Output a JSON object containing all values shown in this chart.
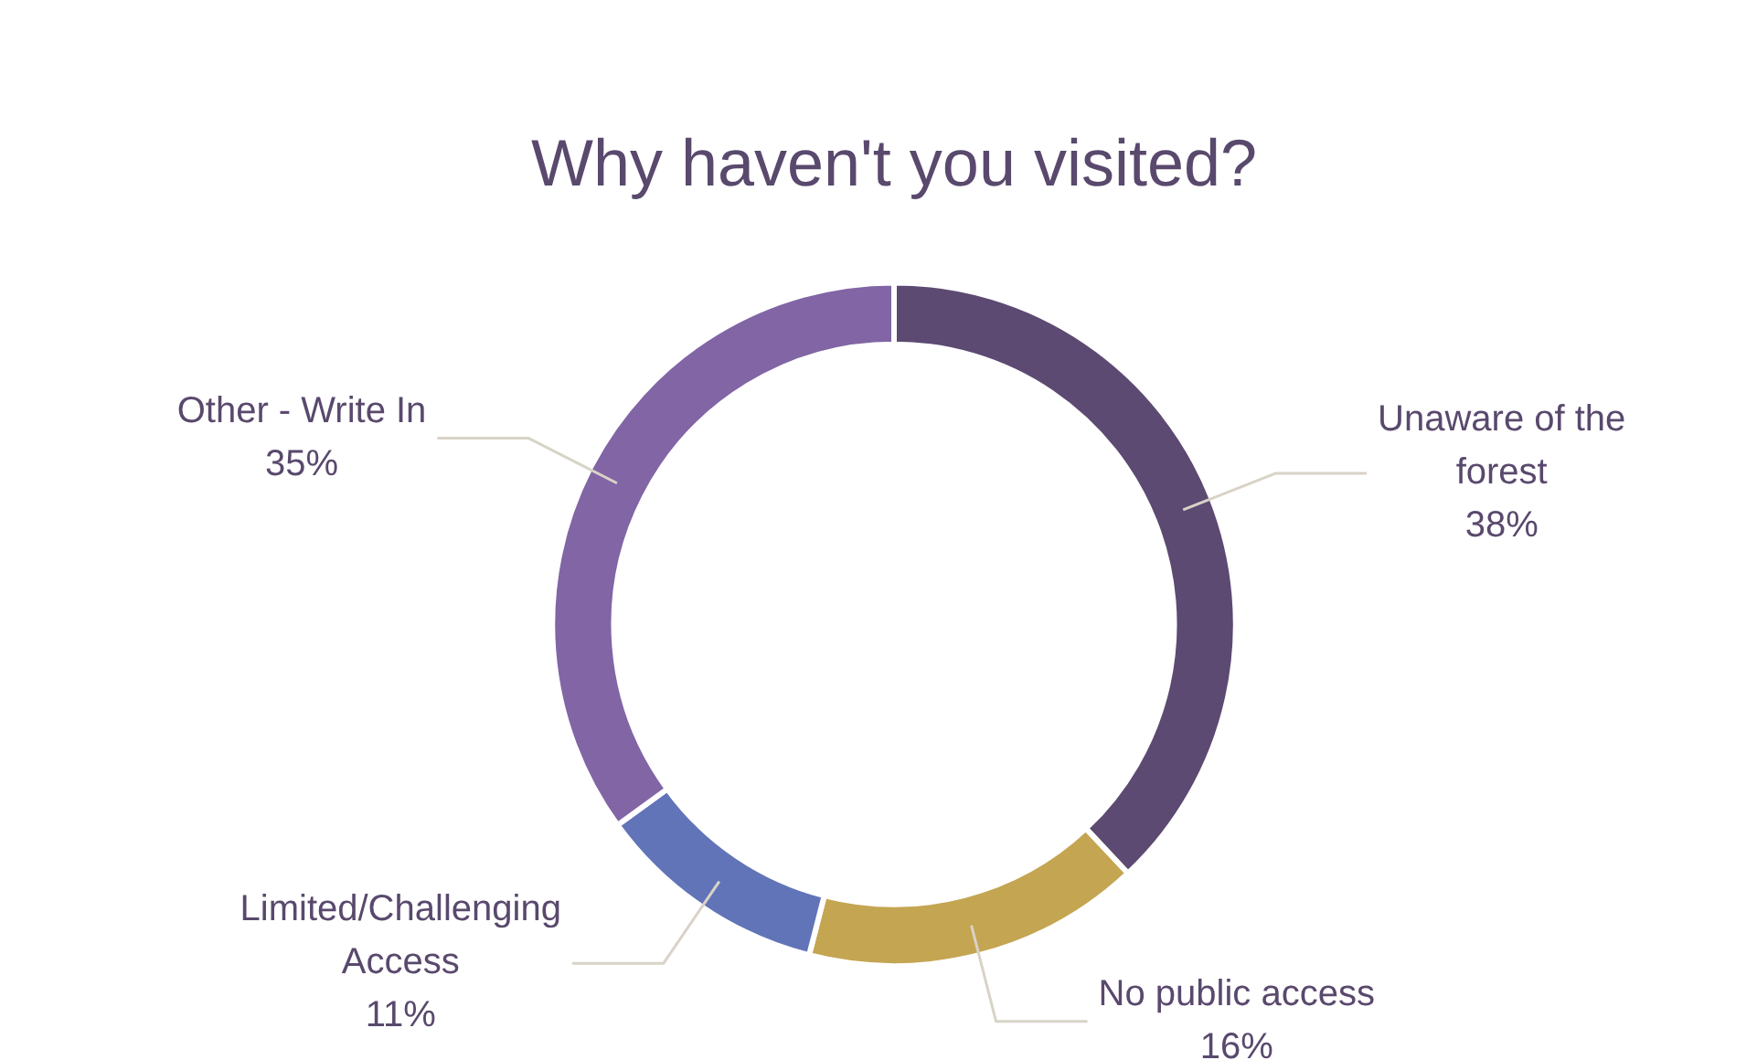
{
  "chart_data": {
    "type": "donut",
    "title": "Why haven't you visited?",
    "categories": [
      "Unaware of the forest",
      "No public access",
      "Limited/Challenging Access",
      "Other - Write In"
    ],
    "values": [
      38,
      16,
      11,
      35
    ],
    "value_labels": [
      "38%",
      "16%",
      "11%",
      "35%"
    ],
    "colors": [
      "#5c4a72",
      "#c4a552",
      "#6274b8",
      "#8165a5"
    ],
    "legend": false
  }
}
